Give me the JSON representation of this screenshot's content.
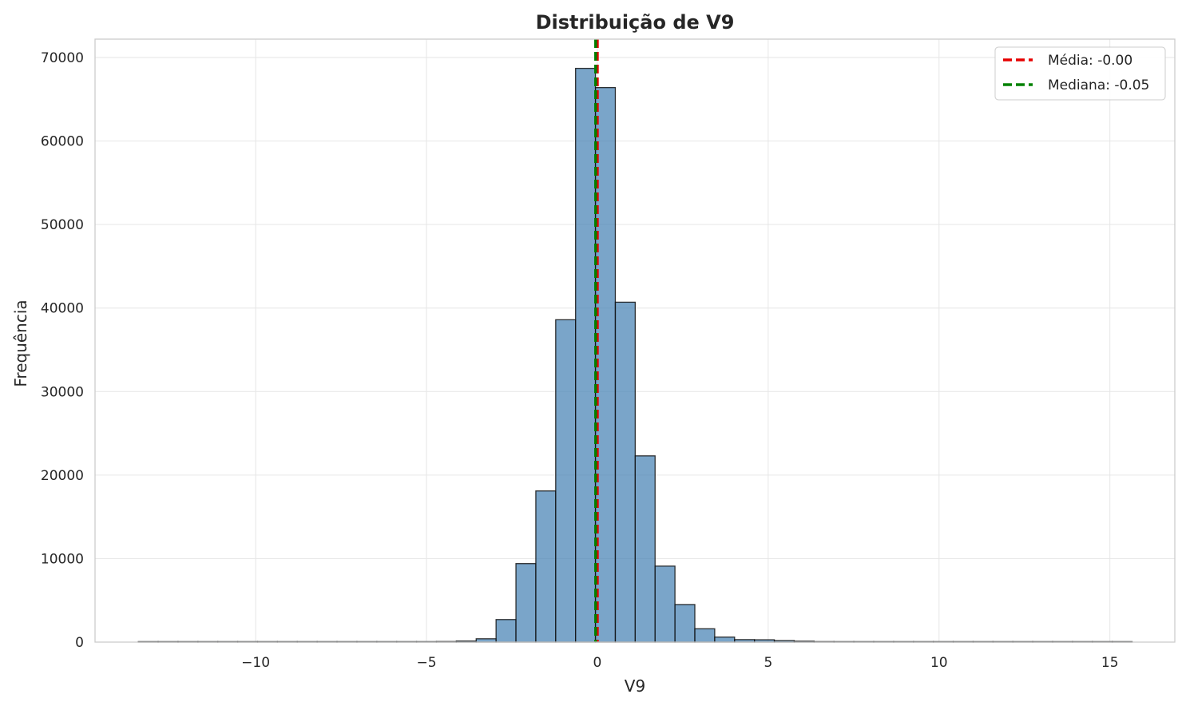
{
  "chart_data": {
    "type": "bar",
    "title": "Distribuição de V9",
    "xlabel": "V9",
    "ylabel": "Frequência",
    "xlim": [
      -14.7,
      16.9
    ],
    "ylim": [
      0,
      72200
    ],
    "grid": true,
    "legend_position": "top-right",
    "bar_color": "#4682b4",
    "x_ticks": [
      {
        "value": -10,
        "label": "−10"
      },
      {
        "value": -5,
        "label": "−5"
      },
      {
        "value": 0,
        "label": "0"
      },
      {
        "value": 5,
        "label": "5"
      },
      {
        "value": 10,
        "label": "10"
      },
      {
        "value": 15,
        "label": "15"
      }
    ],
    "y_ticks": [
      {
        "value": 0,
        "label": "0"
      },
      {
        "value": 10000,
        "label": "10000"
      },
      {
        "value": 20000,
        "label": "20000"
      },
      {
        "value": 30000,
        "label": "30000"
      },
      {
        "value": 40000,
        "label": "40000"
      },
      {
        "value": 50000,
        "label": "50000"
      },
      {
        "value": 60000,
        "label": "60000"
      },
      {
        "value": 70000,
        "label": "70000"
      }
    ],
    "bin_width": 0.5817,
    "bins": [
      {
        "x0": -13.4343,
        "count": 1
      },
      {
        "x0": -12.8526,
        "count": 0
      },
      {
        "x0": -12.2709,
        "count": 0
      },
      {
        "x0": -11.6892,
        "count": 0
      },
      {
        "x0": -11.1075,
        "count": 2
      },
      {
        "x0": -10.5258,
        "count": 0
      },
      {
        "x0": -9.9441,
        "count": 3
      },
      {
        "x0": -9.3624,
        "count": 5
      },
      {
        "x0": -8.7807,
        "count": 4
      },
      {
        "x0": -8.199,
        "count": 9
      },
      {
        "x0": -7.6173,
        "count": 12
      },
      {
        "x0": -7.0356,
        "count": 18
      },
      {
        "x0": -6.4539,
        "count": 25
      },
      {
        "x0": -5.8722,
        "count": 36
      },
      {
        "x0": -5.2905,
        "count": 52
      },
      {
        "x0": -4.7088,
        "count": 70
      },
      {
        "x0": -4.1271,
        "count": 130
      },
      {
        "x0": -3.5454,
        "count": 400
      },
      {
        "x0": -2.9637,
        "count": 2700
      },
      {
        "x0": -2.382,
        "count": 9400
      },
      {
        "x0": -1.8003,
        "count": 18100
      },
      {
        "x0": -1.2186,
        "count": 38600
      },
      {
        "x0": -0.6369,
        "count": 68700
      },
      {
        "x0": -0.0552,
        "count": 66400
      },
      {
        "x0": 0.5265,
        "count": 40700
      },
      {
        "x0": 1.1082,
        "count": 22300
      },
      {
        "x0": 1.6899,
        "count": 9100
      },
      {
        "x0": 2.2716,
        "count": 4500
      },
      {
        "x0": 2.8533,
        "count": 1600
      },
      {
        "x0": 3.435,
        "count": 600
      },
      {
        "x0": 4.0167,
        "count": 300
      },
      {
        "x0": 4.5984,
        "count": 280
      },
      {
        "x0": 5.1801,
        "count": 180
      },
      {
        "x0": 5.7618,
        "count": 110
      },
      {
        "x0": 6.3435,
        "count": 60
      },
      {
        "x0": 6.9252,
        "count": 30
      },
      {
        "x0": 7.5069,
        "count": 18
      },
      {
        "x0": 8.0886,
        "count": 12
      },
      {
        "x0": 8.6703,
        "count": 8
      },
      {
        "x0": 9.252,
        "count": 5
      },
      {
        "x0": 9.8337,
        "count": 4
      },
      {
        "x0": 10.4154,
        "count": 3
      },
      {
        "x0": 10.9971,
        "count": 2
      },
      {
        "x0": 11.5788,
        "count": 2
      },
      {
        "x0": 12.1605,
        "count": 1
      },
      {
        "x0": 12.7422,
        "count": 1
      },
      {
        "x0": 13.3239,
        "count": 1
      },
      {
        "x0": 13.9056,
        "count": 0
      },
      {
        "x0": 14.4873,
        "count": 0
      },
      {
        "x0": 15.069,
        "count": 1
      }
    ],
    "reference_lines": [
      {
        "label": "Média: -0.00",
        "x": -0.0,
        "color": "#e60000"
      },
      {
        "label": "Mediana: -0.05",
        "x": -0.05,
        "color": "#008000"
      }
    ]
  }
}
